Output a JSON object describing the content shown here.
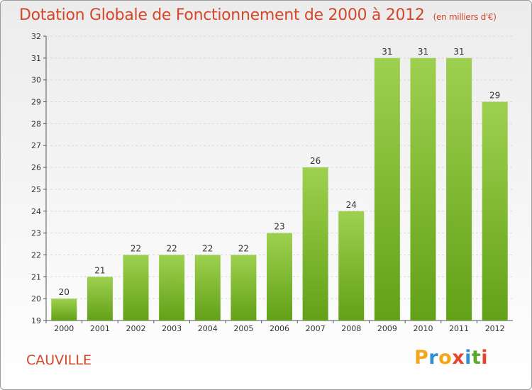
{
  "chart_data": {
    "type": "bar",
    "title": "Dotation Globale de Fonctionnement de 2000 à 2012",
    "subtitle": "(en milliers d'€)",
    "categories": [
      "2000",
      "2001",
      "2002",
      "2003",
      "2004",
      "2005",
      "2006",
      "2007",
      "2008",
      "2009",
      "2010",
      "2011",
      "2012"
    ],
    "values": [
      20,
      21,
      22,
      22,
      22,
      22,
      23,
      26,
      24,
      31,
      31,
      31,
      29
    ],
    "ylim": [
      19,
      32
    ],
    "yticks": [
      19,
      20,
      21,
      22,
      23,
      24,
      25,
      26,
      27,
      28,
      29,
      30,
      31,
      32
    ],
    "xlabel": "",
    "ylabel": "",
    "grid": true,
    "colors": {
      "bar_top": "#9ed04f",
      "bar_bottom": "#62a118",
      "title": "#d4472b",
      "grid": "#d9d9d9"
    }
  },
  "commune": "CAUVILLE",
  "logo": {
    "letters": [
      "P",
      "r",
      "o",
      "x",
      "i",
      "t",
      "i"
    ],
    "colors": [
      "#f2a71b",
      "#2f8fd0",
      "#f2a71b",
      "#e5452d",
      "#2f8fd0",
      "#5aaa2a",
      "#e5452d"
    ]
  }
}
